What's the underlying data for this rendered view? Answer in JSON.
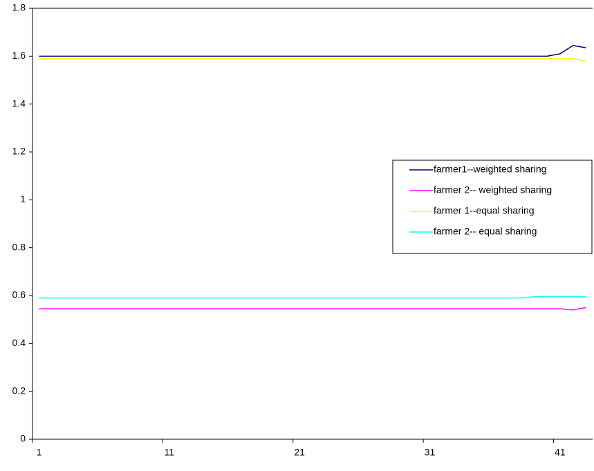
{
  "chart_data": {
    "type": "line",
    "categories": [
      1,
      null,
      null,
      null,
      null,
      null,
      null,
      null,
      null,
      null,
      11,
      null,
      null,
      null,
      null,
      null,
      null,
      null,
      null,
      null,
      21,
      null,
      null,
      null,
      null,
      null,
      null,
      null,
      null,
      null,
      31,
      null,
      null,
      null,
      null,
      null,
      null,
      null,
      null,
      null,
      41,
      null,
      null
    ],
    "series": [
      {
        "name": "farmer1--weighted sharing",
        "color": "#000080",
        "values": [
          1.6,
          1.6,
          1.6,
          1.6,
          1.6,
          1.6,
          1.6,
          1.6,
          1.6,
          1.6,
          1.6,
          1.6,
          1.6,
          1.6,
          1.6,
          1.6,
          1.6,
          1.6,
          1.6,
          1.6,
          1.6,
          1.6,
          1.6,
          1.6,
          1.6,
          1.6,
          1.6,
          1.6,
          1.6,
          1.6,
          1.6,
          1.6,
          1.6,
          1.6,
          1.6,
          1.6,
          1.6,
          1.6,
          1.6,
          1.6,
          1.61,
          1.645,
          1.635
        ]
      },
      {
        "name": "farmer 2-- weighted sharing",
        "color": "#ff00ff",
        "values": [
          0.545,
          0.545,
          0.545,
          0.545,
          0.545,
          0.545,
          0.545,
          0.545,
          0.545,
          0.545,
          0.545,
          0.545,
          0.545,
          0.545,
          0.545,
          0.545,
          0.545,
          0.545,
          0.545,
          0.545,
          0.545,
          0.545,
          0.545,
          0.545,
          0.545,
          0.545,
          0.545,
          0.545,
          0.545,
          0.545,
          0.545,
          0.545,
          0.545,
          0.545,
          0.545,
          0.545,
          0.545,
          0.545,
          0.545,
          0.545,
          0.545,
          0.54,
          0.55
        ]
      },
      {
        "name": "farmer 1--equal sharing",
        "color": "#ffff00",
        "values": [
          1.59,
          1.59,
          1.59,
          1.59,
          1.59,
          1.59,
          1.59,
          1.59,
          1.59,
          1.59,
          1.59,
          1.59,
          1.59,
          1.59,
          1.59,
          1.59,
          1.59,
          1.59,
          1.59,
          1.59,
          1.59,
          1.59,
          1.59,
          1.59,
          1.59,
          1.59,
          1.59,
          1.59,
          1.59,
          1.59,
          1.59,
          1.59,
          1.59,
          1.59,
          1.59,
          1.59,
          1.59,
          1.59,
          1.59,
          1.59,
          1.59,
          1.59,
          1.58
        ]
      },
      {
        "name": "farmer 2-- equal sharing",
        "color": "#00ffff",
        "values": [
          0.59,
          0.59,
          0.59,
          0.59,
          0.59,
          0.59,
          0.59,
          0.59,
          0.59,
          0.59,
          0.59,
          0.59,
          0.59,
          0.59,
          0.59,
          0.59,
          0.59,
          0.59,
          0.59,
          0.59,
          0.59,
          0.59,
          0.59,
          0.59,
          0.59,
          0.59,
          0.59,
          0.59,
          0.59,
          0.59,
          0.59,
          0.59,
          0.59,
          0.59,
          0.59,
          0.59,
          0.59,
          0.59,
          0.595,
          0.595,
          0.595,
          0.595,
          0.595
        ]
      }
    ],
    "ylim": [
      0,
      1.8
    ],
    "yticks": [
      0,
      0.2,
      0.4,
      0.6,
      0.8,
      1,
      1.2,
      1.4,
      1.6,
      1.8
    ],
    "grid": false,
    "legend": "right"
  }
}
